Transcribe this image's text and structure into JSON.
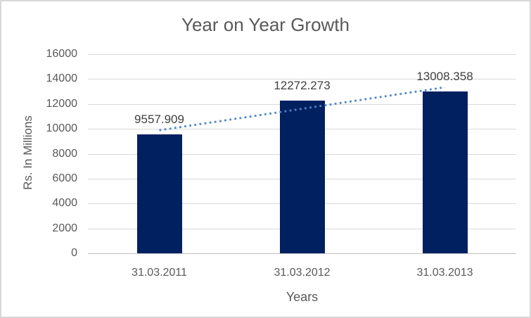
{
  "chart_data": {
    "type": "bar",
    "title": "Year on Year Growth",
    "categories": [
      "31.03.2011",
      "31.03.2012",
      "31.03.2013"
    ],
    "values": [
      9557.909,
      12272.273,
      13008.358
    ],
    "data_labels": [
      "9557.909",
      "12272.273",
      "13008.358"
    ],
    "xlabel": "Years",
    "ylabel": "Rs. In Millions",
    "ylim": [
      0,
      16000
    ],
    "ytick_step": 2000,
    "yticks": [
      0,
      2000,
      4000,
      6000,
      8000,
      10000,
      12000,
      14000,
      16000
    ],
    "grid": true,
    "legend": "none",
    "trendline": {
      "type": "linear",
      "style": "dotted"
    }
  },
  "style": {
    "bar_color": "#002060",
    "trendline_color": "#4e86c8",
    "gridline_color": "#d9d9d9",
    "axis_line_color": "#bfbfbf",
    "title_color": "#595959",
    "axis_text_color": "#595959",
    "data_label_color": "#404040",
    "border_color": "#d7d7d7",
    "background": "#ffffff"
  }
}
